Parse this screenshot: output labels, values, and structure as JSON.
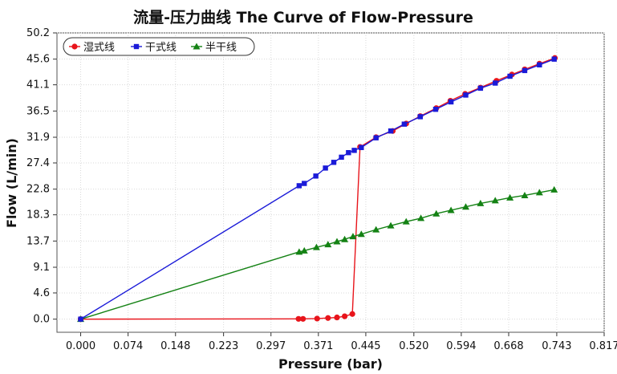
{
  "chart_data": {
    "type": "line",
    "title": "流量-压力曲线 The Curve of Flow-Pressure",
    "xlabel": "Pressure (bar)",
    "ylabel": "Flow (L/min)",
    "xlim": [
      -0.037,
      0.817
    ],
    "ylim": [
      -2.3,
      50.2
    ],
    "xticks": [
      "0.000",
      "0.074",
      "0.148",
      "0.223",
      "0.297",
      "0.371",
      "0.445",
      "0.520",
      "0.594",
      "0.668",
      "0.743",
      "0.817"
    ],
    "yticks": [
      "0.0",
      "4.6",
      "9.1",
      "13.7",
      "18.3",
      "22.8",
      "27.4",
      "31.9",
      "36.5",
      "41.1",
      "45.6",
      "50.2"
    ],
    "grid": true,
    "legend_position": "top-left",
    "series": [
      {
        "name": "湿式线",
        "color": "#e8141b",
        "marker": "circle",
        "x": [
          0.0,
          0.34,
          0.347,
          0.369,
          0.386,
          0.4,
          0.412,
          0.424,
          0.436,
          0.461,
          0.487,
          0.508,
          0.53,
          0.555,
          0.577,
          0.6,
          0.624,
          0.649,
          0.673,
          0.693,
          0.716,
          0.74
        ],
        "y": [
          0.0,
          0.05,
          0.05,
          0.1,
          0.2,
          0.3,
          0.5,
          0.9,
          30.2,
          31.9,
          33.0,
          34.3,
          35.6,
          37.0,
          38.3,
          39.5,
          40.6,
          41.8,
          42.9,
          43.8,
          44.8,
          45.8
        ]
      },
      {
        "name": "干式线",
        "color": "#1a1ad8",
        "marker": "square",
        "x": [
          0.0,
          0.341,
          0.349,
          0.367,
          0.382,
          0.395,
          0.407,
          0.418,
          0.427,
          0.438,
          0.461,
          0.484,
          0.505,
          0.53,
          0.554,
          0.578,
          0.601,
          0.624,
          0.647,
          0.67,
          0.693,
          0.716,
          0.739
        ],
        "y": [
          0.0,
          23.4,
          23.8,
          25.1,
          26.5,
          27.5,
          28.4,
          29.2,
          29.6,
          30.1,
          31.8,
          33.0,
          34.2,
          35.5,
          36.8,
          38.1,
          39.3,
          40.5,
          41.4,
          42.6,
          43.6,
          44.6,
          45.6
        ]
      },
      {
        "name": "半干线",
        "color": "#148214",
        "marker": "triangle",
        "x": [
          0.0,
          0.341,
          0.349,
          0.368,
          0.386,
          0.4,
          0.412,
          0.425,
          0.438,
          0.461,
          0.484,
          0.508,
          0.531,
          0.555,
          0.578,
          0.601,
          0.624,
          0.647,
          0.67,
          0.693,
          0.716,
          0.739
        ],
        "y": [
          0.0,
          11.8,
          12.0,
          12.6,
          13.1,
          13.6,
          14.0,
          14.5,
          14.9,
          15.7,
          16.4,
          17.1,
          17.7,
          18.5,
          19.1,
          19.7,
          20.3,
          20.8,
          21.3,
          21.7,
          22.2,
          22.7
        ]
      }
    ]
  }
}
